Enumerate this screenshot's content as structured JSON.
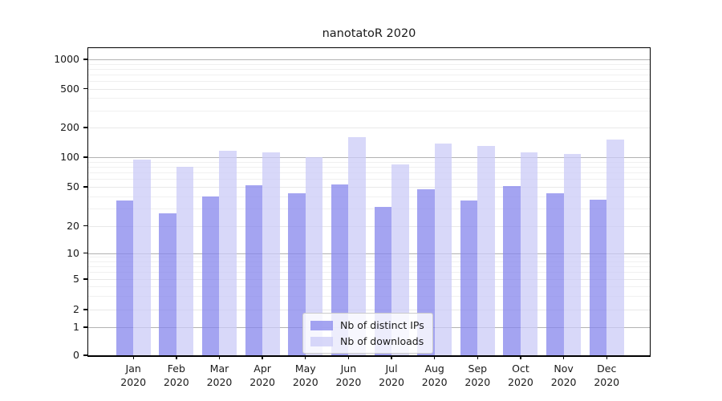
{
  "title": "nanotatoR 2020",
  "colors": {
    "distinct_ips": "rgba(133,133,236,0.75)",
    "downloads": "rgba(203,203,247,0.75)",
    "major_gridline": "#b2b2b2",
    "tick_gridline": "#e8e8e8",
    "minor_gridline": "#f0f0f0",
    "axis": "#000000"
  },
  "legend": {
    "items": [
      {
        "label": "Nb of distinct IPs",
        "series_key": "distinct_ips"
      },
      {
        "label": "Nb of downloads",
        "series_key": "downloads"
      }
    ]
  },
  "chart_data": {
    "type": "bar",
    "title": "nanotatoR 2020",
    "xlabel": "",
    "ylabel": "",
    "year": "2020",
    "categories": [
      "Jan",
      "Feb",
      "Mar",
      "Apr",
      "May",
      "Jun",
      "Jul",
      "Aug",
      "Sep",
      "Oct",
      "Nov",
      "Dec"
    ],
    "series": [
      {
        "name": "Nb of distinct IPs",
        "values": [
          36,
          27,
          40,
          52,
          43,
          53,
          31,
          47,
          36,
          51,
          43,
          37
        ]
      },
      {
        "name": "Nb of downloads",
        "values": [
          95,
          80,
          116,
          112,
          100,
          161,
          84,
          137,
          130,
          112,
          107,
          152
        ]
      }
    ],
    "y_scale": "log-like (compressed below 10), 0 baseline",
    "y_tick_labels": [
      "1000",
      "500",
      "200",
      "100",
      "50",
      "20",
      "10",
      "5",
      "2",
      "1",
      "0"
    ],
    "y_tick_values": [
      1000,
      500,
      200,
      100,
      50,
      20,
      10,
      5,
      2,
      1,
      0
    ],
    "major_gridline_values": [
      1000,
      100,
      10,
      1
    ],
    "minor_gridline_values": [
      900,
      800,
      700,
      600,
      400,
      300,
      90,
      80,
      70,
      60,
      40,
      30,
      9,
      8,
      7,
      6,
      4,
      3
    ],
    "legend_position": "lower center",
    "grid": true
  }
}
